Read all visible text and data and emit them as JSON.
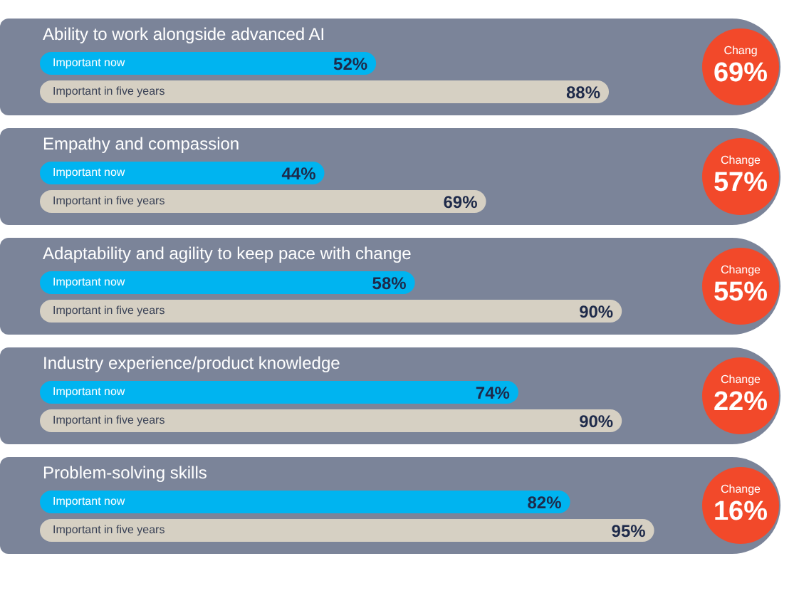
{
  "chart_data": {
    "type": "bar",
    "orientation": "horizontal",
    "categories": [
      "Ability to work alongside advanced AI",
      "Empathy and compassion",
      "Adaptability and agility to keep pace with change",
      "Industry experience/product knowledge",
      "Problem-solving skills"
    ],
    "series": [
      {
        "name": "Important now",
        "color": "#00b4f0",
        "values": [
          52,
          44,
          58,
          74,
          82
        ],
        "value_labels": [
          "52%",
          "44%",
          "58%",
          "74%",
          "82%"
        ]
      },
      {
        "name": "Important in five years",
        "color": "#d6d0c3",
        "values": [
          88,
          69,
          90,
          90,
          95
        ],
        "value_labels": [
          "88%",
          "69%",
          "90%",
          "90%",
          "95%"
        ]
      }
    ],
    "annotations": [
      "Chang\n69%",
      "Change\n57%",
      "Change\n55%",
      "Change\n22%",
      "Change\n16%"
    ]
  }
}
